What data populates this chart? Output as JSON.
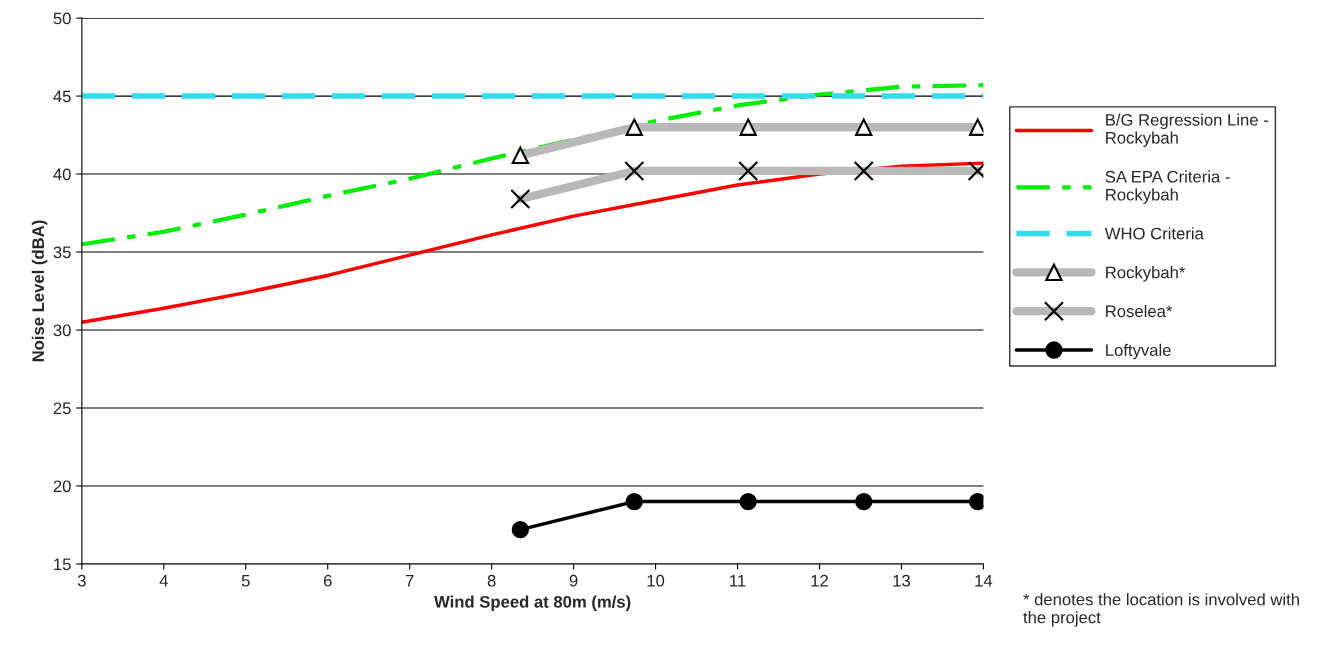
{
  "chart_data": {
    "type": "line",
    "xlabel": "Wind Speed at 80m (m/s)",
    "ylabel": "Noise Level (dBA)",
    "xlim": [
      3,
      14
    ],
    "xticks": [
      3,
      4,
      5,
      6,
      7,
      8,
      9,
      10,
      11,
      12,
      13,
      14
    ],
    "ylim": [
      15,
      50
    ],
    "yticks": [
      15,
      20,
      25,
      30,
      35,
      40,
      45,
      50
    ],
    "grid": "y",
    "legend": "right",
    "annotations": [
      "* denotes the location is involved with the project"
    ],
    "series": [
      {
        "name": "B/G Regression Line - Rockybah",
        "color": "#ff0000",
        "line_style": "solid",
        "marker": "none",
        "x": [
          3,
          4,
          5,
          6,
          7,
          8,
          9,
          10,
          11,
          12,
          13,
          14
        ],
        "values": [
          30.5,
          31.4,
          32.4,
          33.5,
          34.8,
          36.1,
          37.3,
          38.3,
          39.3,
          40.0,
          40.5,
          40.7
        ]
      },
      {
        "name": "SA EPA Criteria - Rockybah",
        "color": "#00ee00",
        "line_style": "dashdot",
        "marker": "none",
        "x": [
          3,
          4,
          5,
          6,
          7,
          8,
          9,
          10,
          11,
          12,
          13,
          14
        ],
        "values": [
          35.5,
          36.3,
          37.4,
          38.6,
          39.7,
          41.0,
          42.2,
          43.4,
          44.4,
          45.1,
          45.6,
          45.7
        ]
      },
      {
        "name": "WHO Criteria",
        "color": "#33ddee",
        "line_style": "dashed",
        "marker": "none",
        "x": [
          3,
          14
        ],
        "values": [
          45,
          45
        ]
      },
      {
        "name": "Rockybah*",
        "color": "#b8b8b8",
        "line_style": "solid",
        "marker": "triangle",
        "x": [
          8.35,
          9.74,
          11.13,
          12.54,
          13.93
        ],
        "values": [
          41.2,
          43,
          43,
          43,
          43
        ]
      },
      {
        "name": "Roselea*",
        "color": "#b8b8b8",
        "line_style": "solid",
        "marker": "cross",
        "x": [
          8.35,
          9.74,
          11.13,
          12.54,
          13.93
        ],
        "values": [
          38.4,
          40.2,
          40.2,
          40.2,
          40.2
        ]
      },
      {
        "name": "Loftyvale",
        "color": "#000000",
        "line_style": "solid",
        "marker": "circle",
        "x": [
          8.35,
          9.74,
          11.13,
          12.54,
          13.93
        ],
        "values": [
          17.2,
          19,
          19,
          19,
          19
        ]
      }
    ]
  }
}
